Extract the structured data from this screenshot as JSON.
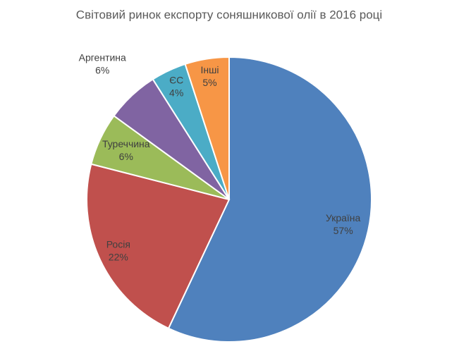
{
  "chart_data": {
    "type": "pie",
    "title": "Світовий  ринок  експорту  соняшникової  олії  в 2016 році",
    "categories": [
      "Україна",
      "Росія",
      "Туреччина",
      "Аргентина",
      "ЄС",
      "Інші"
    ],
    "values": [
      57,
      22,
      6,
      6,
      4,
      5
    ],
    "value_labels": [
      "57%",
      "22%",
      "6%",
      "6%",
      "4%",
      "5%"
    ],
    "colors": [
      "#4f81bd",
      "#c0504d",
      "#9bbb59",
      "#8064a2",
      "#4bacc6",
      "#f79646"
    ]
  }
}
